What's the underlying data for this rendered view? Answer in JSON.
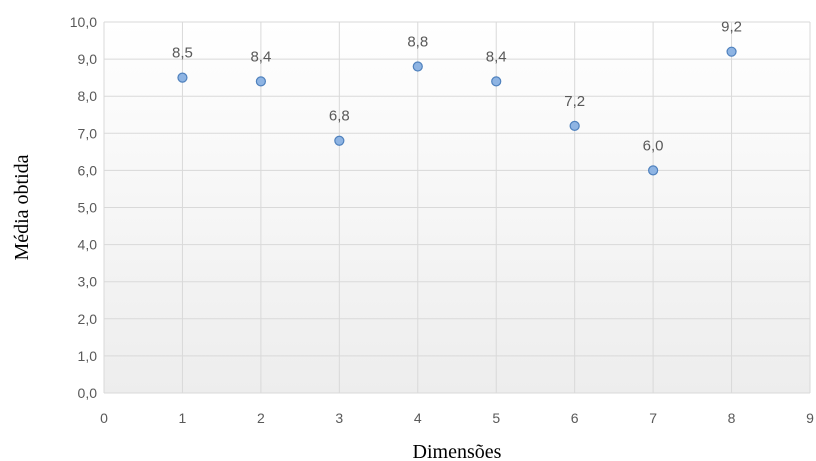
{
  "chart_data": {
    "type": "scatter",
    "xlabel": "Dimensões",
    "ylabel": "Média obtida",
    "xlim": [
      0,
      9
    ],
    "ylim": [
      0,
      10
    ],
    "x_ticks": [
      "0",
      "1",
      "2",
      "3",
      "4",
      "5",
      "6",
      "7",
      "8",
      "9"
    ],
    "y_ticks": [
      "0,0",
      "1,0",
      "2,0",
      "3,0",
      "4,0",
      "5,0",
      "6,0",
      "7,0",
      "8,0",
      "9,0",
      "10,0"
    ],
    "grid": true,
    "points": [
      {
        "x": 1,
        "y": 8.5,
        "label": "8,5"
      },
      {
        "x": 2,
        "y": 8.4,
        "label": "8,4"
      },
      {
        "x": 3,
        "y": 6.8,
        "label": "6,8"
      },
      {
        "x": 4,
        "y": 8.8,
        "label": "8,8"
      },
      {
        "x": 5,
        "y": 8.4,
        "label": "8,4"
      },
      {
        "x": 6,
        "y": 7.2,
        "label": "7,2"
      },
      {
        "x": 7,
        "y": 6.0,
        "label": "6,0"
      },
      {
        "x": 8,
        "y": 9.2,
        "label": "9,2"
      }
    ],
    "colors": {
      "marker_fill": "#8eb4e3",
      "marker_stroke": "#4f81bd",
      "grid": "#d9d9d9",
      "plot_bg_top": "#ffffff",
      "plot_bg_bottom": "#ededed"
    }
  }
}
